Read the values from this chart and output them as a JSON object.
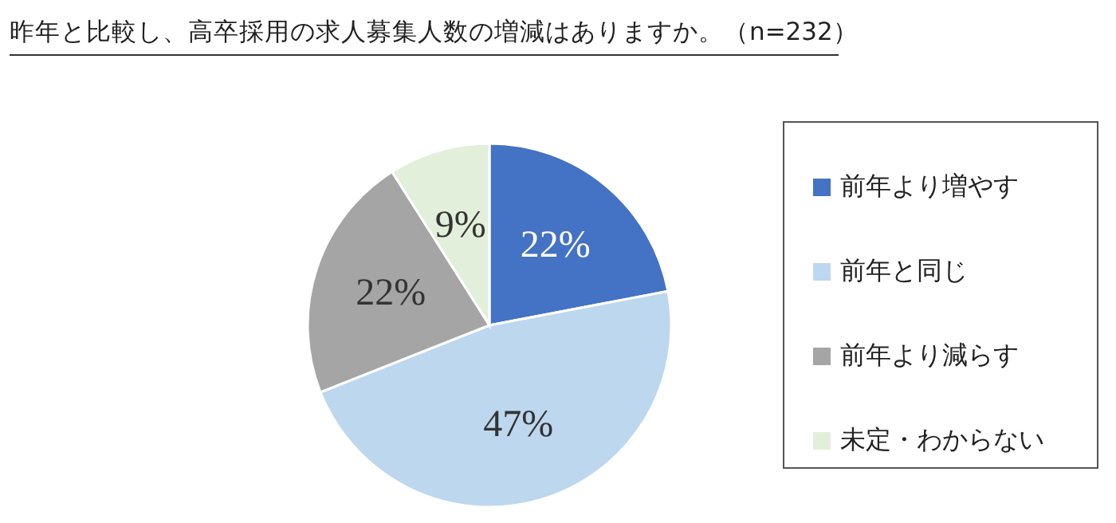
{
  "chart_data": {
    "type": "pie",
    "title": "昨年と比較し、高卒採用の求人募集人数の増減はありますか。（n=232）",
    "categories": [
      "前年より増やす",
      "前年と同じ",
      "前年より減らす",
      "未定・わからない"
    ],
    "values": [
      22,
      47,
      22,
      9
    ],
    "colors": [
      "#4472c4",
      "#bdd7ee",
      "#a5a5a5",
      "#e2efda"
    ],
    "value_labels": [
      "22%",
      "47%",
      "22%",
      "9%"
    ],
    "legend": "right"
  }
}
